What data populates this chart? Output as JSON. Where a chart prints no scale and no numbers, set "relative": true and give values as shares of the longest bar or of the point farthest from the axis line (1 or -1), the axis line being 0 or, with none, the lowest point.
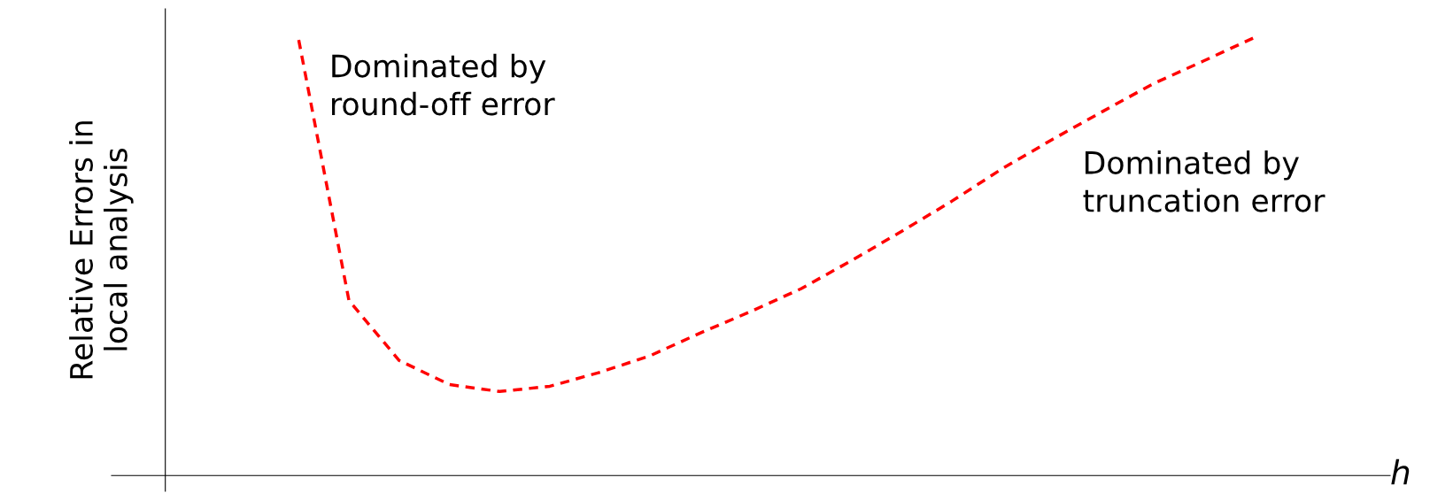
{
  "chart_data": {
    "type": "line",
    "relative": true,
    "xlabel": "h",
    "ylabel": "Relative Errors in\nlocal analysis",
    "categories": [
      null,
      null,
      null,
      null,
      null,
      null,
      null,
      null,
      null,
      null,
      null,
      null,
      null,
      null,
      null,
      null,
      null,
      null,
      null,
      null
    ],
    "series": [
      {
        "color": "#ff0000",
        "values": [
          0.996,
          0.4,
          0.263,
          0.208,
          0.192,
          0.204,
          0.236,
          0.274,
          0.326,
          0.375,
          0.427,
          0.491,
          0.558,
          0.627,
          0.701,
          0.768,
          0.832,
          0.895,
          0.947,
          1.0
        ]
      }
    ],
    "line_style": "dashed",
    "marker": "none",
    "legend": false,
    "annotations": [
      "Dominated by\nround-off error",
      "Dominated by\ntruncation error"
    ]
  }
}
